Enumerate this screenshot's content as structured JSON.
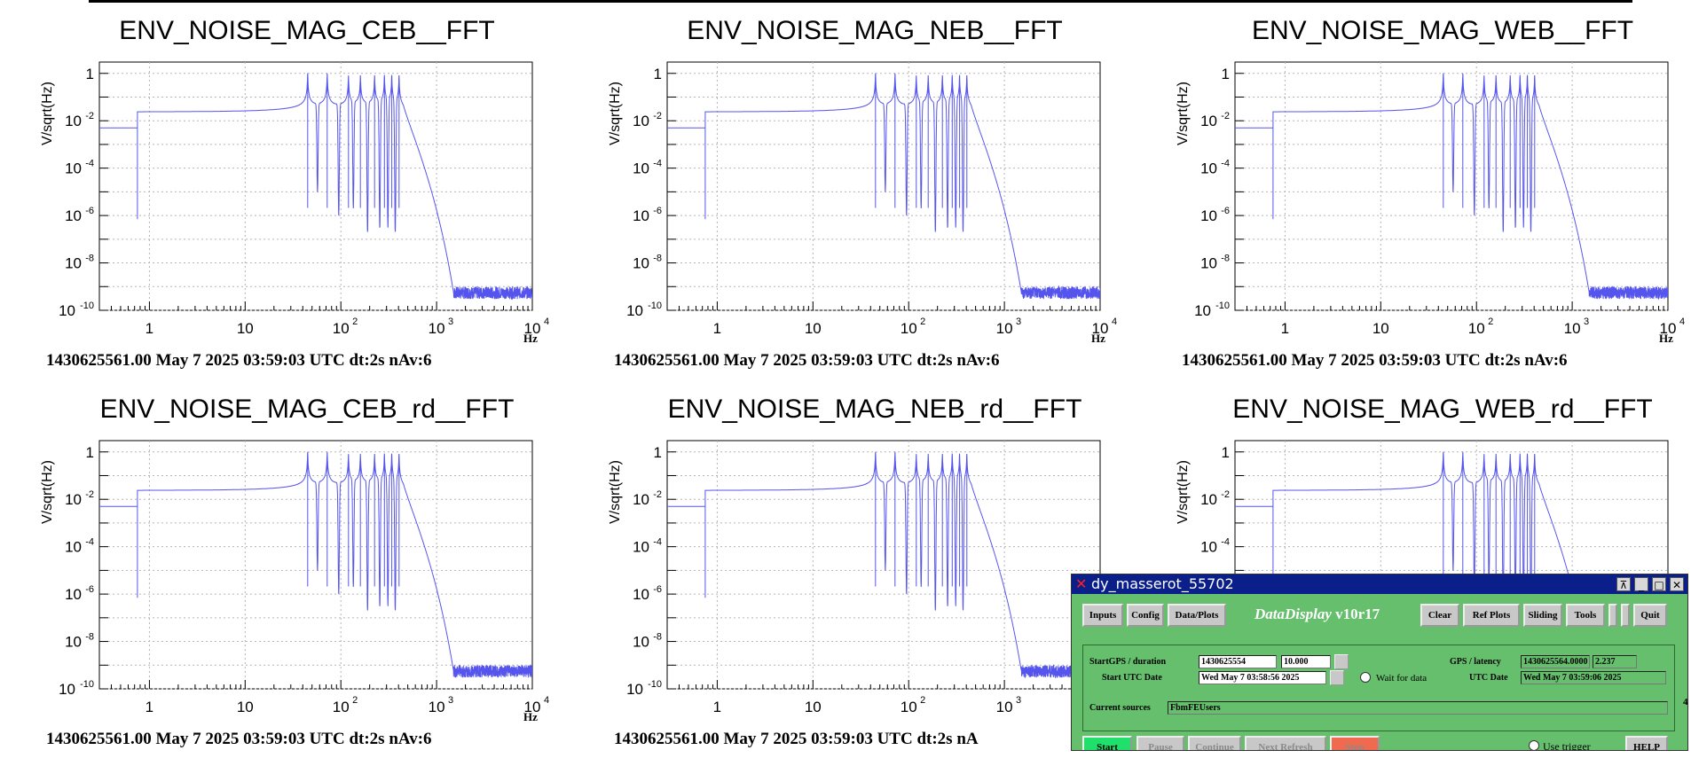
{
  "plots": [
    {
      "title": "ENV_NOISE_MAG_CEB__FFT",
      "ylabel": "V/sqrt(Hz)",
      "xunit": "Hz",
      "footer": "1430625561.00 May 7 2025 03:59:03 UTC dt:2s nAv:6"
    },
    {
      "title": "ENV_NOISE_MAG_NEB__FFT",
      "ylabel": "V/sqrt(Hz)",
      "xunit": "Hz",
      "footer": "1430625561.00 May 7 2025 03:59:03 UTC dt:2s nAv:6"
    },
    {
      "title": "ENV_NOISE_MAG_WEB__FFT",
      "ylabel": "V/sqrt(Hz)",
      "xunit": "Hz",
      "footer": "1430625561.00 May 7 2025 03:59:03 UTC dt:2s nAv:6"
    },
    {
      "title": "ENV_NOISE_MAG_CEB_rd__FFT",
      "ylabel": "V/sqrt(Hz)",
      "xunit": "Hz",
      "footer": "1430625561.00 May 7 2025 03:59:03 UTC dt:2s nAv:6"
    },
    {
      "title": "ENV_NOISE_MAG_NEB_rd__FFT",
      "ylabel": "V/sqrt(Hz)",
      "xunit": "",
      "footer": "1430625561.00 May 7 2025 03:59:03 UTC dt:2s nA"
    },
    {
      "title": "ENV_NOISE_MAG_WEB_rd__FFT",
      "ylabel": "V/sqrt(Hz)",
      "xunit": "",
      "footer": ""
    }
  ],
  "y_ticks": [
    {
      "base": "1",
      "exp": ""
    },
    {
      "base": "10",
      "exp": "-2"
    },
    {
      "base": "10",
      "exp": "-4"
    },
    {
      "base": "10",
      "exp": "-6"
    },
    {
      "base": "10",
      "exp": "-8"
    },
    {
      "base": "10",
      "exp": "-10"
    }
  ],
  "x_ticks": [
    {
      "base": "1",
      "exp": ""
    },
    {
      "base": "10",
      "exp": ""
    },
    {
      "base": "10",
      "exp": "2"
    },
    {
      "base": "10",
      "exp": "3"
    },
    {
      "base": "10",
      "exp": "4"
    }
  ],
  "colors": {
    "trace": "#5555ee",
    "grid": "#b4b4b4",
    "window_bg": "#65bf6c",
    "titlebar_bg": "#0a1f8a",
    "start_button": "#1ee06a",
    "stop_button": "#f06a50"
  },
  "chart_data": [
    {
      "type": "line",
      "title": "ENV_NOISE_MAG_CEB__FFT",
      "xlabel": "Hz",
      "ylabel": "V/sqrt(Hz)",
      "x_scale": "log",
      "y_scale": "log",
      "xlim": [
        0.3,
        10000
      ],
      "ylim": [
        1e-10,
        3
      ],
      "grid": true,
      "series": [
        {
          "step": {
            "x_from": 0.3,
            "x_to": 0.75,
            "level": 0.005
          },
          "floor": 7e-07,
          "rise_start": 10,
          "peaks": [
            {
              "f": 45,
              "amp": 1.0
            },
            {
              "f": 72,
              "amp": 1.0
            },
            {
              "f": 120,
              "amp": 0.8
            },
            {
              "f": 160,
              "amp": 0.8
            },
            {
              "f": 225,
              "amp": 0.8
            },
            {
              "f": 285,
              "amp": 0.8
            },
            {
              "f": 340,
              "amp": 0.8
            },
            {
              "f": 405,
              "amp": 0.8
            }
          ],
          "dips": [
            {
              "f": 57,
              "v": 1e-05
            },
            {
              "f": 95,
              "v": 1e-06
            },
            {
              "f": 135,
              "v": 2e-06
            },
            {
              "f": 190,
              "v": 2e-07
            },
            {
              "f": 255,
              "v": 3e-07
            },
            {
              "f": 310,
              "v": 3e-07
            },
            {
              "f": 370,
              "v": 2e-07
            }
          ],
          "rolloff": {
            "from": 450,
            "to": 1500
          },
          "noise_floor": [
            3e-10,
            1e-09
          ]
        }
      ]
    },
    {
      "type": "line",
      "title": "ENV_NOISE_MAG_NEB__FFT",
      "xlabel": "Hz",
      "ylabel": "V/sqrt(Hz)",
      "x_scale": "log",
      "y_scale": "log",
      "xlim": [
        0.3,
        10000
      ],
      "ylim": [
        1e-10,
        3
      ],
      "grid": true,
      "series": [
        {
          "step": {
            "x_from": 0.3,
            "x_to": 0.75,
            "level": 0.005
          },
          "floor": 7e-07,
          "rise_start": 10,
          "peaks": [
            {
              "f": 45,
              "amp": 1.0
            },
            {
              "f": 72,
              "amp": 1.0
            },
            {
              "f": 120,
              "amp": 0.8
            },
            {
              "f": 160,
              "amp": 0.8
            },
            {
              "f": 225,
              "amp": 0.8
            },
            {
              "f": 285,
              "amp": 0.8
            },
            {
              "f": 340,
              "amp": 0.8
            },
            {
              "f": 405,
              "amp": 0.8
            }
          ],
          "dips": [
            {
              "f": 57,
              "v": 1e-05
            },
            {
              "f": 95,
              "v": 1e-06
            },
            {
              "f": 135,
              "v": 2e-06
            },
            {
              "f": 190,
              "v": 2e-07
            },
            {
              "f": 255,
              "v": 3e-07
            },
            {
              "f": 310,
              "v": 3e-07
            },
            {
              "f": 370,
              "v": 2e-07
            }
          ],
          "rolloff": {
            "from": 450,
            "to": 1500
          },
          "noise_floor": [
            3e-10,
            1e-09
          ]
        }
      ]
    },
    {
      "type": "line",
      "title": "ENV_NOISE_MAG_WEB__FFT",
      "xlabel": "Hz",
      "ylabel": "V/sqrt(Hz)",
      "x_scale": "log",
      "y_scale": "log",
      "xlim": [
        0.3,
        10000
      ],
      "ylim": [
        1e-10,
        3
      ],
      "grid": true,
      "series": [
        {
          "step": {
            "x_from": 0.3,
            "x_to": 0.75,
            "level": 0.005
          },
          "floor": 7e-07,
          "rise_start": 10,
          "peaks": [
            {
              "f": 45,
              "amp": 1.0
            },
            {
              "f": 72,
              "amp": 1.0
            },
            {
              "f": 120,
              "amp": 0.8
            },
            {
              "f": 160,
              "amp": 0.8
            },
            {
              "f": 225,
              "amp": 0.8
            },
            {
              "f": 285,
              "amp": 0.8
            },
            {
              "f": 340,
              "amp": 0.8
            },
            {
              "f": 405,
              "amp": 0.8
            }
          ],
          "dips": [
            {
              "f": 57,
              "v": 1e-05
            },
            {
              "f": 95,
              "v": 1e-06
            },
            {
              "f": 135,
              "v": 2e-06
            },
            {
              "f": 190,
              "v": 2e-07
            },
            {
              "f": 255,
              "v": 3e-07
            },
            {
              "f": 310,
              "v": 3e-07
            },
            {
              "f": 370,
              "v": 2e-07
            }
          ],
          "rolloff": {
            "from": 450,
            "to": 1500
          },
          "noise_floor": [
            3e-10,
            1e-09
          ]
        }
      ]
    },
    {
      "type": "line",
      "title": "ENV_NOISE_MAG_CEB_rd__FFT",
      "xlabel": "Hz",
      "ylabel": "V/sqrt(Hz)",
      "x_scale": "log",
      "y_scale": "log",
      "xlim": [
        0.3,
        10000
      ],
      "ylim": [
        1e-10,
        3
      ],
      "grid": true,
      "series": [
        {
          "step": {
            "x_from": 0.3,
            "x_to": 0.75,
            "level": 0.005
          },
          "floor": 7e-07,
          "rise_start": 10,
          "peaks": [
            {
              "f": 45,
              "amp": 1.0
            },
            {
              "f": 72,
              "amp": 1.0
            },
            {
              "f": 120,
              "amp": 0.8
            },
            {
              "f": 160,
              "amp": 0.8
            },
            {
              "f": 225,
              "amp": 0.8
            },
            {
              "f": 285,
              "amp": 0.8
            },
            {
              "f": 340,
              "amp": 0.8
            },
            {
              "f": 405,
              "amp": 0.8
            }
          ],
          "dips": [
            {
              "f": 57,
              "v": 1e-05
            },
            {
              "f": 95,
              "v": 1e-06
            },
            {
              "f": 135,
              "v": 2e-06
            },
            {
              "f": 190,
              "v": 2e-07
            },
            {
              "f": 255,
              "v": 3e-07
            },
            {
              "f": 310,
              "v": 3e-07
            },
            {
              "f": 370,
              "v": 2e-07
            }
          ],
          "rolloff": {
            "from": 450,
            "to": 1500
          },
          "noise_floor": [
            3e-10,
            1e-09
          ]
        }
      ]
    },
    {
      "type": "line",
      "title": "ENV_NOISE_MAG_NEB_rd__FFT",
      "xlabel": "",
      "ylabel": "V/sqrt(Hz)",
      "x_scale": "log",
      "y_scale": "log",
      "xlim": [
        0.3,
        10000
      ],
      "ylim": [
        1e-10,
        3
      ],
      "grid": true,
      "series": [
        {
          "step": {
            "x_from": 0.3,
            "x_to": 0.75,
            "level": 0.005
          },
          "floor": 7e-07,
          "rise_start": 10,
          "peaks": [
            {
              "f": 45,
              "amp": 1.0
            },
            {
              "f": 72,
              "amp": 1.0
            },
            {
              "f": 120,
              "amp": 0.8
            },
            {
              "f": 160,
              "amp": 0.8
            },
            {
              "f": 225,
              "amp": 0.8
            },
            {
              "f": 285,
              "amp": 0.8
            },
            {
              "f": 340,
              "amp": 0.8
            },
            {
              "f": 405,
              "amp": 0.8
            }
          ],
          "dips": [
            {
              "f": 57,
              "v": 1e-05
            },
            {
              "f": 95,
              "v": 1e-06
            },
            {
              "f": 135,
              "v": 2e-06
            },
            {
              "f": 190,
              "v": 2e-07
            },
            {
              "f": 255,
              "v": 3e-07
            },
            {
              "f": 310,
              "v": 3e-07
            },
            {
              "f": 370,
              "v": 2e-07
            }
          ],
          "rolloff": {
            "from": 450,
            "to": 1500
          },
          "noise_floor": [
            3e-10,
            1e-09
          ]
        }
      ]
    },
    {
      "type": "line",
      "title": "ENV_NOISE_MAG_WEB_rd__FFT",
      "xlabel": "",
      "ylabel": "V/sqrt(Hz)",
      "x_scale": "log",
      "y_scale": "log",
      "xlim": [
        0.3,
        10000
      ],
      "ylim": [
        1e-10,
        3
      ],
      "grid": true,
      "series": [
        {
          "step": {
            "x_from": 0.3,
            "x_to": 0.75,
            "level": 0.005
          },
          "floor": 7e-07,
          "rise_start": 10,
          "peaks": [
            {
              "f": 45,
              "amp": 1.0
            },
            {
              "f": 72,
              "amp": 1.0
            },
            {
              "f": 120,
              "amp": 0.8
            },
            {
              "f": 160,
              "amp": 0.8
            },
            {
              "f": 225,
              "amp": 0.8
            },
            {
              "f": 285,
              "amp": 0.8
            },
            {
              "f": 340,
              "amp": 0.8
            },
            {
              "f": 405,
              "amp": 0.8
            }
          ],
          "dips": [
            {
              "f": 57,
              "v": 1e-05
            },
            {
              "f": 95,
              "v": 1e-06
            },
            {
              "f": 135,
              "v": 2e-06
            },
            {
              "f": 190,
              "v": 2e-07
            },
            {
              "f": 255,
              "v": 3e-07
            },
            {
              "f": 310,
              "v": 3e-07
            },
            {
              "f": 370,
              "v": 2e-07
            }
          ],
          "rolloff": {
            "from": 450,
            "to": 1500
          },
          "noise_floor": [
            3e-10,
            1e-09
          ]
        }
      ]
    }
  ],
  "dataviewer": {
    "window_title": "dy_masserot_55702",
    "brand_name": "DataDisplay",
    "brand_version": "v10r17",
    "toolbar": [
      "Inputs",
      "Config",
      "Data/Plots",
      "Clear",
      "Ref Plots",
      "Sliding",
      "Tools",
      "Quit"
    ],
    "start_label": "StartGPS / duration",
    "start_gps": "1430625554",
    "duration": "10.000",
    "utc_label": "Start UTC Date",
    "utc_value": "Wed May  7 03:58:56 2025",
    "wait_label": "Wait for data",
    "gps_latency_label": "GPS / latency",
    "gps_value": "1430625564.0000",
    "latency_value": "2.237",
    "utc_date_label": "UTC Date",
    "utc_date_value": "Wed May  7 03:59:06 2025",
    "sources_label": "Current sources",
    "sources_value": "FbmFEUsers",
    "controls": [
      "Start",
      "Pause",
      "Continue",
      "Next Refresh",
      "Stop"
    ],
    "use_trigger": "Use trigger",
    "help": "HELP",
    "side_digit": "4"
  }
}
